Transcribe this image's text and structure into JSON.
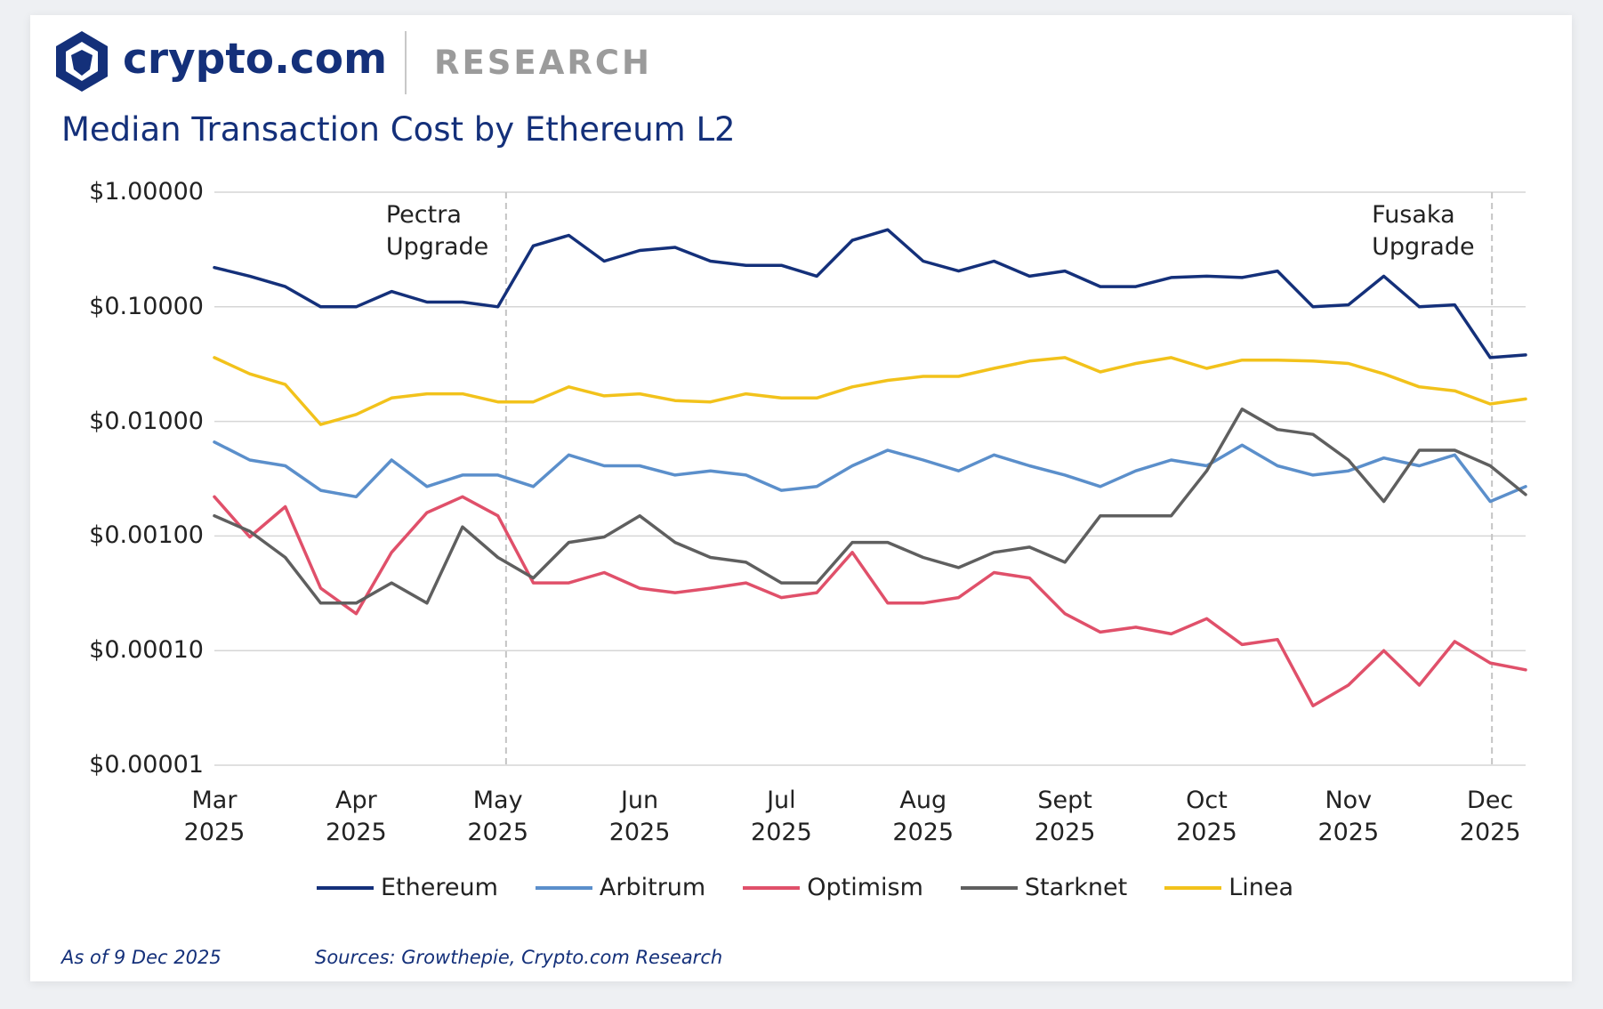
{
  "chart_data": {
    "type": "line",
    "brand": "crypto.com",
    "brand_tag": "RESEARCH",
    "title": "Median Transaction Cost by Ethereum L2",
    "note": "As of 9 Dec 2025",
    "source": "Sources: Growthepie, Crypto.com Research",
    "log_y": true,
    "grid": true,
    "ylim": [
      1e-05,
      1
    ],
    "yticks": [
      {
        "value": 1,
        "label": "$1.00000"
      },
      {
        "value": 0.1,
        "label": "$0.10000"
      },
      {
        "value": 0.01,
        "label": "$0.01000"
      },
      {
        "value": 0.001,
        "label": "$0.00100"
      },
      {
        "value": 0.0001,
        "label": "$0.00010"
      },
      {
        "value": 1e-05,
        "label": "$0.00001"
      }
    ],
    "categories": [
      "Mar 2025",
      null,
      null,
      null,
      "Apr 2025",
      null,
      null,
      null,
      "May 2025",
      null,
      null,
      null,
      "Jun 2025",
      null,
      null,
      null,
      "Jul 2025",
      null,
      null,
      null,
      "Aug 2025",
      null,
      null,
      null,
      "Sept 2025",
      null,
      null,
      null,
      "Oct 2025",
      null,
      null,
      null,
      "Nov 2025",
      null,
      null,
      null,
      "Dec 2025",
      null
    ],
    "annotations": [
      {
        "text": "Pectra Upgrade"
      },
      {
        "text": "Fusaka Upgrade"
      }
    ],
    "legend": "bottom",
    "series": [
      {
        "name": "Ethereum",
        "color": "#14307a",
        "values": [
          0.22,
          0.185,
          0.15,
          0.1,
          0.1,
          0.136,
          0.11,
          0.11,
          0.1,
          0.34,
          0.42,
          0.25,
          0.31,
          0.33,
          0.25,
          0.23,
          0.23,
          0.185,
          0.38,
          0.47,
          0.25,
          0.205,
          0.25,
          0.185,
          0.205,
          0.15,
          0.15,
          0.18,
          0.185,
          0.18,
          0.205,
          0.1,
          0.104,
          0.185,
          0.1,
          0.104,
          0.036,
          0.038
        ]
      },
      {
        "name": "Arbitrum",
        "color": "#5b8fcb",
        "values": [
          0.0066,
          0.0046,
          0.0041,
          0.0025,
          0.0022,
          0.0046,
          0.0027,
          0.0034,
          0.0034,
          0.0027,
          0.0051,
          0.0041,
          0.0041,
          0.0034,
          0.0037,
          0.0034,
          0.0025,
          0.0027,
          0.0041,
          0.0056,
          0.0046,
          0.0037,
          0.0051,
          0.0041,
          0.0034,
          0.0027,
          0.0037,
          0.0046,
          0.0041,
          0.0062,
          0.0041,
          0.0034,
          0.0037,
          0.0048,
          0.0041,
          0.0051,
          0.002,
          0.0027
        ]
      },
      {
        "name": "Optimism",
        "color": "#e0506a",
        "values": [
          0.0022,
          0.00098,
          0.0018,
          0.00035,
          0.00021,
          0.00072,
          0.0016,
          0.0022,
          0.0015,
          0.00039,
          0.00039,
          0.00048,
          0.00035,
          0.00032,
          0.00035,
          0.00039,
          0.00029,
          0.00032,
          0.00072,
          0.00026,
          0.00026,
          0.00029,
          0.00048,
          0.00043,
          0.00021,
          0.000145,
          0.00016,
          0.00014,
          0.00019,
          0.000113,
          0.000125,
          3.3e-05,
          5e-05,
          0.0001,
          5e-05,
          0.00012,
          7.8e-05,
          6.8e-05
        ]
      },
      {
        "name": "Starknet",
        "color": "#5f5f5f",
        "values": [
          0.0015,
          0.0011,
          0.00065,
          0.00026,
          0.00026,
          0.00039,
          0.00026,
          0.0012,
          0.00065,
          0.00043,
          0.00088,
          0.00098,
          0.0015,
          0.00088,
          0.00065,
          0.00059,
          0.00039,
          0.00039,
          0.00088,
          0.00088,
          0.00065,
          0.00053,
          0.00072,
          0.0008,
          0.00059,
          0.0015,
          0.0015,
          0.0015,
          0.0037,
          0.0128,
          0.0085,
          0.0077,
          0.0046,
          0.002,
          0.0056,
          0.0056,
          0.0041,
          0.0023
        ]
      },
      {
        "name": "Linea",
        "color": "#f2c21b",
        "values": [
          0.036,
          0.026,
          0.021,
          0.0094,
          0.0115,
          0.016,
          0.0174,
          0.0174,
          0.0148,
          0.0148,
          0.02,
          0.0167,
          0.0174,
          0.0152,
          0.0148,
          0.0174,
          0.016,
          0.016,
          0.02,
          0.0228,
          0.0247,
          0.0247,
          0.029,
          0.0336,
          0.036,
          0.027,
          0.032,
          0.036,
          0.029,
          0.0343,
          0.0343,
          0.0336,
          0.032,
          0.026,
          0.02,
          0.0185,
          0.0142,
          0.0157
        ]
      }
    ]
  }
}
